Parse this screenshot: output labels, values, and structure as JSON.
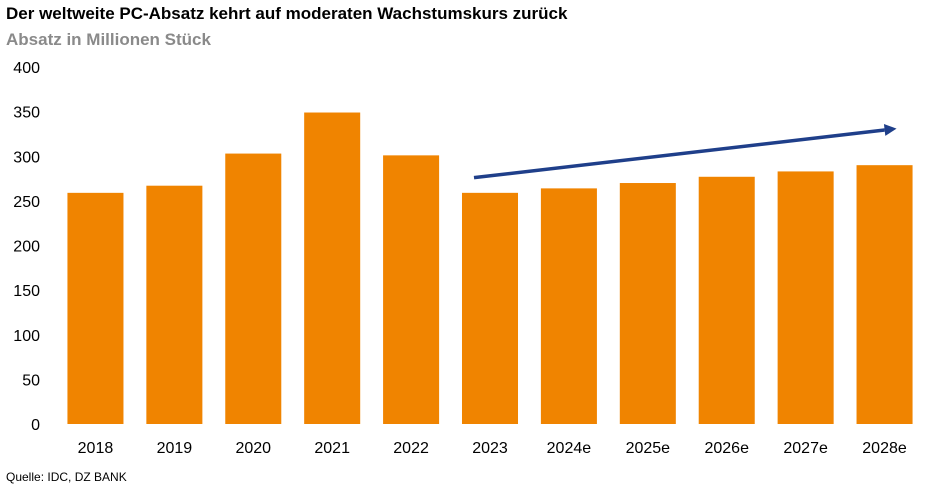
{
  "chart_data": {
    "type": "bar",
    "title": "Der weltweite PC-Absatz kehrt auf moderaten Wachstumskurs zurück",
    "subtitle": "Absatz in Millionen Stück",
    "source": "Quelle: IDC, DZ BANK",
    "categories": [
      "2018",
      "2019",
      "2020",
      "2021",
      "2022",
      "2023",
      "2024e",
      "2025e",
      "2026e",
      "2027e",
      "2028e"
    ],
    "values": [
      259,
      267,
      303,
      349,
      301,
      259,
      264,
      270,
      277,
      283,
      290
    ],
    "ylim": [
      0,
      400
    ],
    "yticks": [
      "0",
      "50",
      "100",
      "150",
      "200",
      "250",
      "300",
      "350",
      "400"
    ],
    "grid": false,
    "bar_color": "#F08400",
    "trend_arrow": {
      "color": "#1F3F8A",
      "from": {
        "category": "2023",
        "value": 276
      },
      "to": {
        "category": "2028e",
        "value": 331
      }
    }
  }
}
